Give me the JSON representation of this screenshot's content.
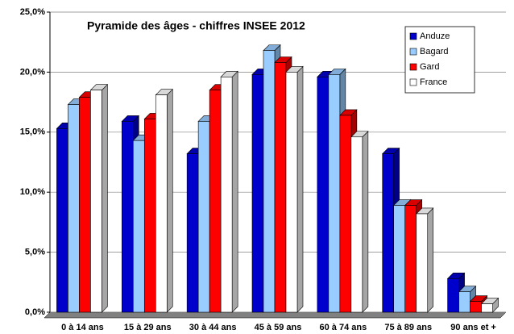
{
  "chart_data": {
    "type": "bar3d",
    "title": "Pyramide des âges - chiffres INSEE 2012",
    "categories": [
      "0 à 14 ans",
      "15 à 29 ans",
      "30 à 44 ans",
      "45 à 59 ans",
      "60 à 74 ans",
      "75 à 89 ans",
      "90 ans et +"
    ],
    "series": [
      {
        "name": "Anduze",
        "color": "#0000cc",
        "values": [
          15.3,
          15.9,
          13.2,
          19.8,
          19.6,
          13.2,
          2.8
        ]
      },
      {
        "name": "Bagard",
        "color": "#99ccff",
        "values": [
          17.3,
          14.3,
          15.9,
          21.8,
          19.8,
          8.9,
          1.7
        ]
      },
      {
        "name": "Gard",
        "color": "#ff0000",
        "values": [
          17.9,
          16.1,
          18.5,
          20.8,
          16.4,
          8.9,
          0.9
        ]
      },
      {
        "name": "France",
        "color": "#ffffff",
        "values": [
          18.5,
          18.1,
          19.6,
          20.0,
          14.6,
          8.2,
          0.7
        ]
      }
    ],
    "ylim": [
      0,
      25
    ],
    "yticks": [
      {
        "value": 0,
        "label": "0,0%"
      },
      {
        "value": 5,
        "label": "5,0%"
      },
      {
        "value": 10,
        "label": "10,0%"
      },
      {
        "value": 15,
        "label": "15,0%"
      },
      {
        "value": 20,
        "label": "20,0%"
      },
      {
        "value": 25,
        "label": "25,0%"
      }
    ],
    "grid": true
  }
}
